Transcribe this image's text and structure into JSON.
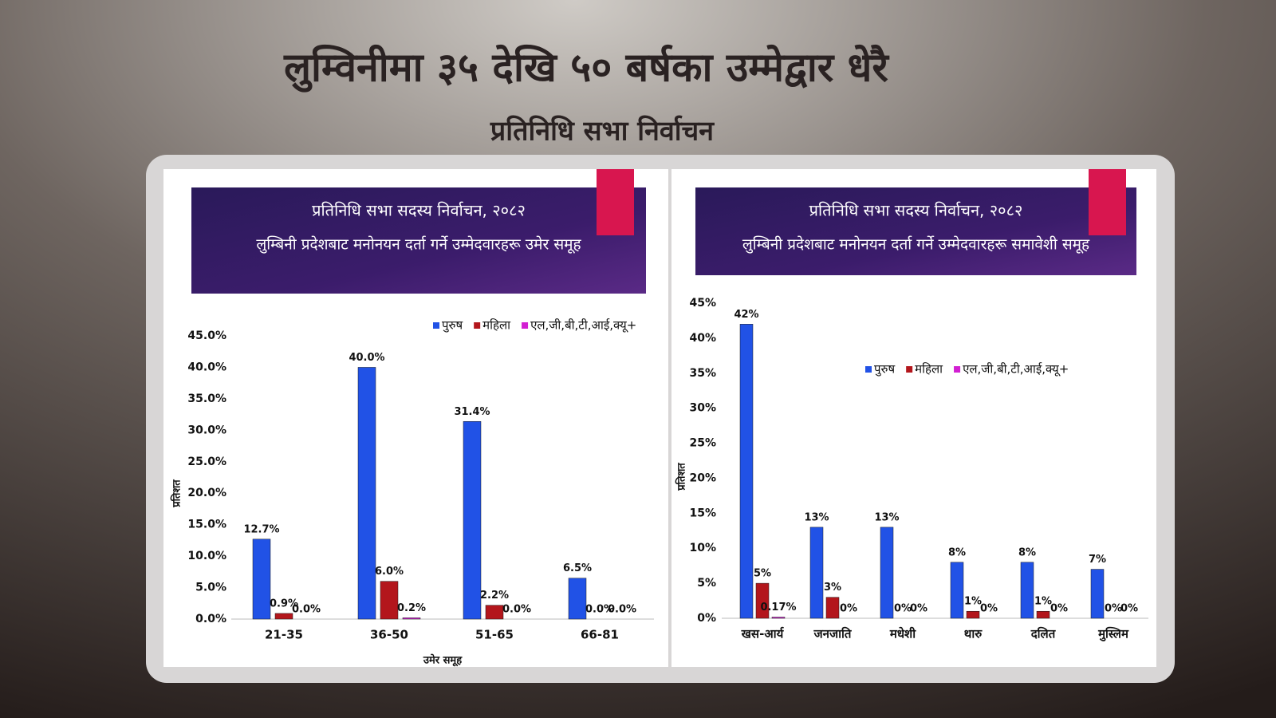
{
  "header": {
    "title": "लुम्विनीमा ३५ देखि ५० बर्षका उम्मेद्वार धेरै",
    "subtitle": "प्रतिनिधि सभा निर्वाचन"
  },
  "chart_data": [
    {
      "type": "bar",
      "title": "प्रतिनिधि सभा सदस्य निर्वाचन, २०८२",
      "subtitle": "लुम्बिनी प्रदेशबाट मनोनयन दर्ता गर्ने उम्मेदवारहरू उमेर समूह",
      "x_label": "उमेर समूह",
      "y_label": "प्रतिशत",
      "categories": [
        "21-35",
        "36-50",
        "51-65",
        "66-81"
      ],
      "series": [
        {
          "name": "पुरुष",
          "color": "#2152e6",
          "values": [
            12.7,
            40.0,
            31.4,
            6.5
          ],
          "value_labels": [
            "12.7%",
            "40.0%",
            "31.4%",
            "6.5%"
          ]
        },
        {
          "name": "महिला",
          "color": "#b3161c",
          "values": [
            0.9,
            6.0,
            2.2,
            0.0
          ],
          "value_labels": [
            "0.9%",
            "6.0%",
            "2.2%",
            "0.0%"
          ]
        },
        {
          "name": "एल,जी,बी,टी,आई,क्यू+",
          "color": "#d21fd2",
          "values": [
            0.0,
            0.2,
            0.0,
            0.0
          ],
          "value_labels": [
            "0.0%",
            "0.2%",
            "0.0%",
            "0.0%"
          ]
        }
      ],
      "ylim": [
        0,
        45
      ],
      "yticks": [
        {
          "value": 0,
          "label": "0.0%"
        },
        {
          "value": 5,
          "label": "5.0%"
        },
        {
          "value": 10,
          "label": "10.0%"
        },
        {
          "value": 15,
          "label": "15.0%"
        },
        {
          "value": 20,
          "label": "20.0%"
        },
        {
          "value": 25,
          "label": "25.0%"
        },
        {
          "value": 30,
          "label": "30.0%"
        },
        {
          "value": 35,
          "label": "35.0%"
        },
        {
          "value": 40,
          "label": "40.0%"
        },
        {
          "value": 45,
          "label": "45.0%"
        }
      ]
    },
    {
      "type": "bar",
      "title": "प्रतिनिधि सभा सदस्य निर्वाचन, २०८२",
      "subtitle": "लुम्बिनी प्रदेशबाट मनोनयन दर्ता गर्ने उम्मेदवारहरू समावेशी समूह",
      "y_label": "प्रतिशत",
      "categories": [
        "खस-आर्य",
        "जनजाति",
        "मधेशी",
        "थारु",
        "दलित",
        "मुस्लिम"
      ],
      "series": [
        {
          "name": "पुरुष",
          "color": "#2152e6",
          "values": [
            42,
            13,
            13,
            8,
            8,
            7
          ],
          "value_labels": [
            "42%",
            "13%",
            "13%",
            "8%",
            "8%",
            "7%"
          ]
        },
        {
          "name": "महिला",
          "color": "#b3161c",
          "values": [
            5,
            3,
            0,
            1,
            1,
            0
          ],
          "value_labels": [
            "5%",
            "3%",
            "0%",
            "1%",
            "1%",
            "0%"
          ]
        },
        {
          "name": "एल,जी,बी,टी,आई,क्यू+",
          "color": "#d21fd2",
          "values": [
            0.17,
            0,
            0,
            0,
            0,
            0
          ],
          "value_labels": [
            "0.17%",
            "0%",
            "0%",
            "0%",
            "0%",
            "0%"
          ]
        }
      ],
      "ylim": [
        0,
        45
      ],
      "yticks": [
        {
          "value": 0,
          "label": "0%"
        },
        {
          "value": 5,
          "label": "5%"
        },
        {
          "value": 10,
          "label": "10%"
        },
        {
          "value": 15,
          "label": "15%"
        },
        {
          "value": 20,
          "label": "20%"
        },
        {
          "value": 25,
          "label": "25%"
        },
        {
          "value": 30,
          "label": "30%"
        },
        {
          "value": 35,
          "label": "35%"
        },
        {
          "value": 40,
          "label": "40%"
        },
        {
          "value": 45,
          "label": "45%"
        }
      ]
    }
  ]
}
